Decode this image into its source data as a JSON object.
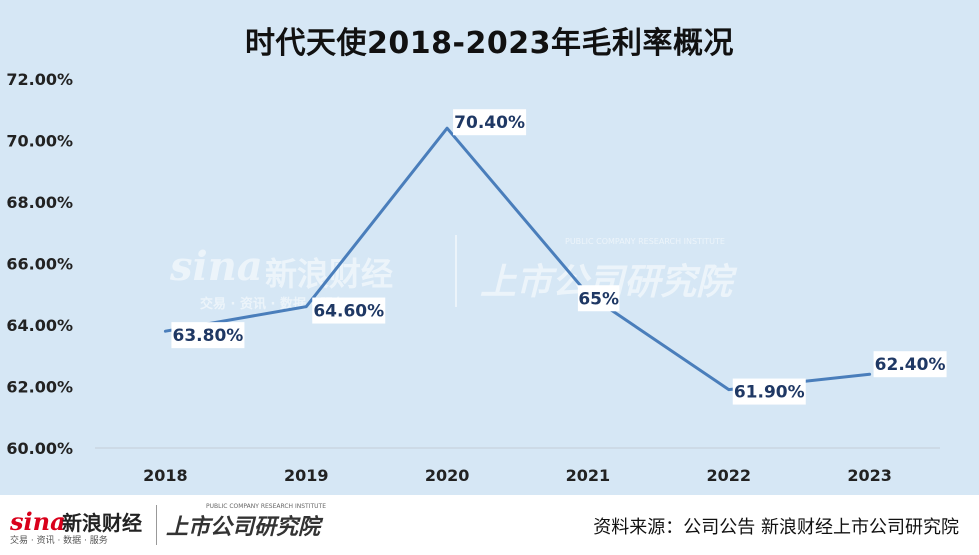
{
  "header": {
    "title": "时代天使2018-2023年毛利率概况"
  },
  "watermark": {
    "sina_logo": "sina",
    "sina_cn": "新浪财经",
    "sina_sub": "交易 · 资讯 · 数据 · 服务",
    "institute_cn": "上市公司研究院",
    "institute_en": "PUBLIC COMPANY RESEARCH INSTITUTE"
  },
  "footer": {
    "sina_logo": "sina",
    "sina_cn": "新浪财经",
    "sina_sub": "交易 · 资讯 · 数据 · 服务",
    "institute_cn": "上市公司研究院",
    "institute_en": "PUBLIC COMPANY RESEARCH INSTITUTE",
    "source": "资料来源：公司公告 新浪财经上市公司研究院"
  },
  "colors": {
    "background": "#d6e7f5",
    "line": "#4a7ebb",
    "label_text": "#1f3864",
    "label_bg": "#ffffff"
  },
  "chart_data": {
    "type": "line",
    "title": "时代天使2018-2023年毛利率概况",
    "categories": [
      "2018",
      "2019",
      "2020",
      "2021",
      "2022",
      "2023"
    ],
    "series": [
      {
        "values": [
          63.8,
          64.6,
          70.4,
          65.0,
          61.9,
          62.4
        ],
        "labels": [
          "63.80%",
          "64.60%",
          "70.40%",
          "65%",
          "61.90%",
          "62.40%"
        ]
      }
    ],
    "y_ticks": [
      60,
      62,
      64,
      66,
      68,
      70,
      72
    ],
    "y_tick_labels": [
      "60.00%",
      "62.00%",
      "64.00%",
      "66.00%",
      "68.00%",
      "70.00%",
      "72.00%"
    ],
    "ylim": [
      60,
      72
    ],
    "grid": false,
    "legend": "none",
    "xlabel": "",
    "ylabel": ""
  }
}
